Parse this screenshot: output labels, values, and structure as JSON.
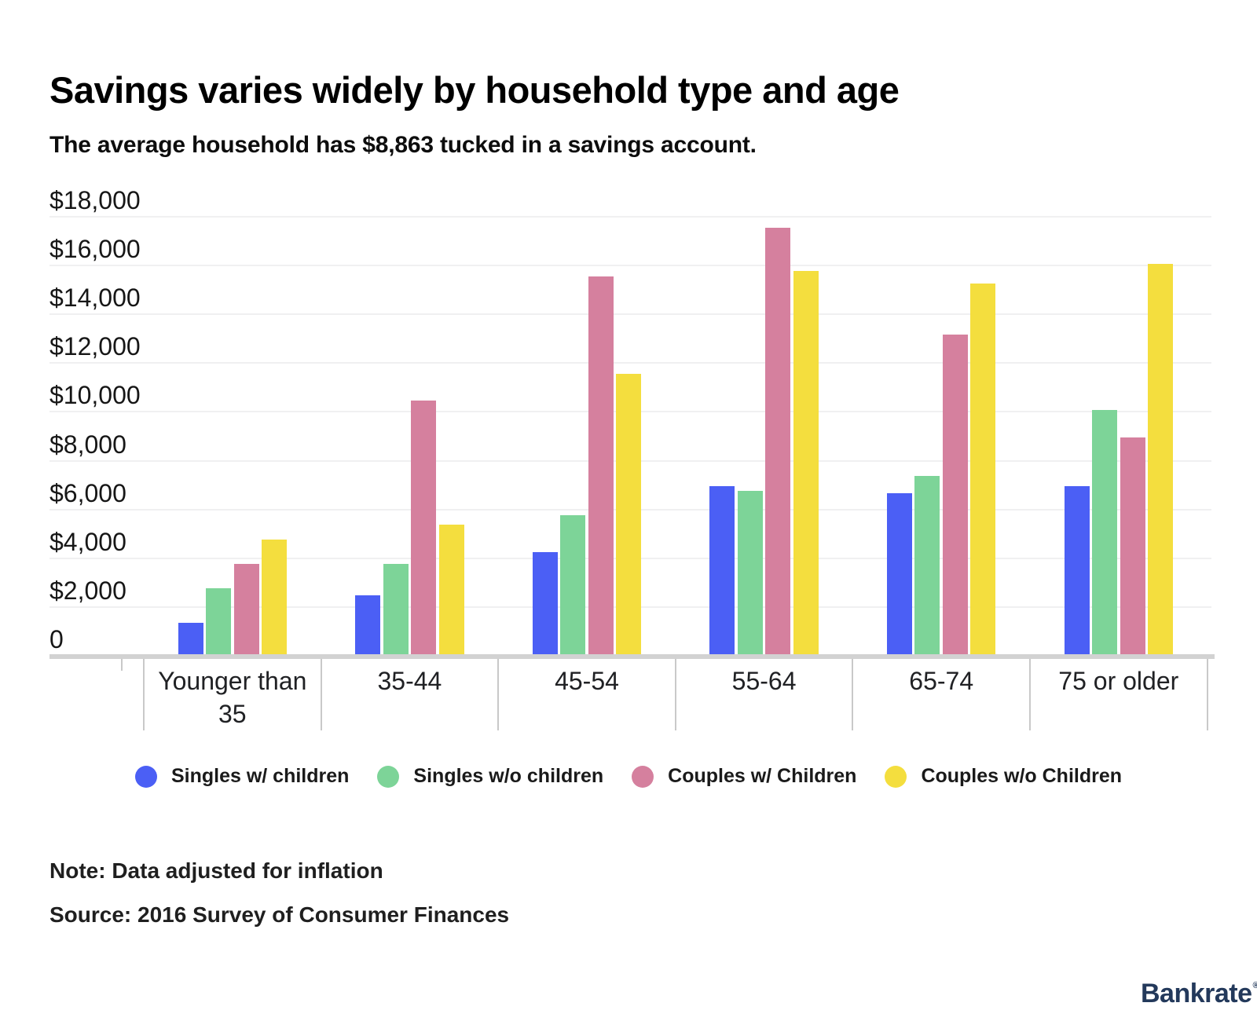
{
  "header": {
    "title": "Savings varies widely by household type and age",
    "subtitle": "The average household has $8,863 tucked in a savings account."
  },
  "chart_data": {
    "type": "bar",
    "title": "Savings varies widely by household type and age",
    "subtitle": "The average household has $8,863 tucked in a savings account.",
    "categories": [
      "Younger than 35",
      "35-44",
      "45-54",
      "55-64",
      "65-74",
      "75 or older"
    ],
    "series": [
      {
        "name": "Singles w/ children",
        "color": "#4b5ff5",
        "values": [
          1300,
          2400,
          4200,
          6900,
          6600,
          6900
        ]
      },
      {
        "name": "Singles w/o children",
        "color": "#7dd498",
        "values": [
          2700,
          3700,
          5700,
          6700,
          7300,
          10000
        ]
      },
      {
        "name": "Couples w/ Children",
        "color": "#d5809e",
        "values": [
          3700,
          10400,
          15500,
          17500,
          13100,
          8900
        ]
      },
      {
        "name": "Couples w/o Children",
        "color": "#f4de3e",
        "values": [
          4700,
          5300,
          11500,
          15700,
          15200,
          16000
        ]
      }
    ],
    "ylim": [
      0,
      18000
    ],
    "ytick_step": 2000,
    "yticks": [
      {
        "value": 0,
        "label": "0"
      },
      {
        "value": 2000,
        "label": "$2,000"
      },
      {
        "value": 4000,
        "label": "$4,000"
      },
      {
        "value": 6000,
        "label": "$6,000"
      },
      {
        "value": 8000,
        "label": "$8,000"
      },
      {
        "value": 10000,
        "label": "$10,000"
      },
      {
        "value": 12000,
        "label": "$12,000"
      },
      {
        "value": 14000,
        "label": "$14,000"
      },
      {
        "value": 16000,
        "label": "$16,000"
      },
      {
        "value": 18000,
        "label": "$18,000"
      }
    ],
    "grid": true,
    "legend_position": "bottom",
    "colors": {
      "gridline": "#f0f0f1",
      "axis": "#d2d2d2",
      "divider": "#c9c9c9"
    }
  },
  "footer": {
    "note": "Note: Data adjusted for inflation",
    "source": "Source: 2016 Survey of Consumer Finances",
    "brand": "Bankrate",
    "brand_mark": "®"
  }
}
